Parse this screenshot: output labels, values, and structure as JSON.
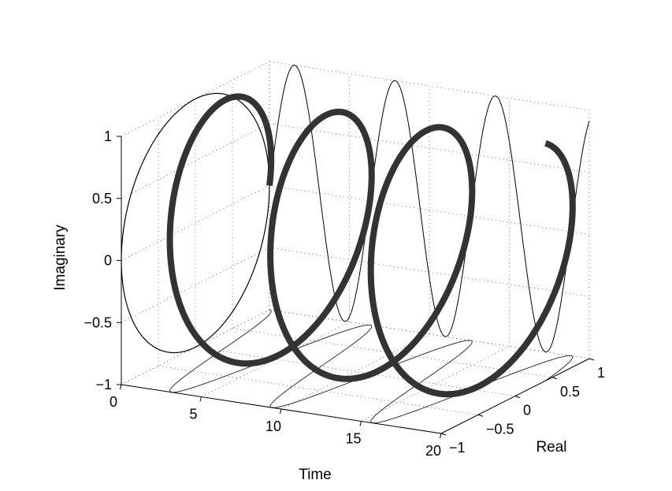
{
  "chart_data": {
    "type": "line",
    "view": "3d",
    "xlabel": "Time",
    "ylabel": "Real",
    "zlabel": "Imaginary",
    "xlim": [
      0,
      20
    ],
    "ylim": [
      -1,
      1
    ],
    "zlim": [
      -1,
      1
    ],
    "x_ticks": [
      "0",
      "5",
      "10",
      "15",
      "20"
    ],
    "y_ticks": [
      "−1",
      "−0.5",
      "0",
      "0.5",
      "1"
    ],
    "z_ticks": [
      "−1",
      "−0.5",
      "0",
      "0.5",
      "1"
    ],
    "grid": true,
    "legend": "none",
    "series": [
      {
        "function": "z(t) = exp(i*t)",
        "t_range": [
          0,
          20
        ],
        "real": "cos(t)",
        "imaginary": "sin(t)",
        "role": "helix",
        "style": "thick",
        "color": "#333333"
      },
      {
        "role": "projection onto Real-Imaginary plane at Time = 0",
        "x": 0,
        "real": "cos(t)",
        "imaginary": "sin(t)",
        "style": "thin",
        "color": "#000000"
      },
      {
        "role": "projection onto Time-Imaginary back wall (Real = 1)",
        "imaginary": "sin(t)",
        "style": "thin",
        "color": "#000000"
      },
      {
        "role": "projection onto Time-Real floor (Imaginary = -1)",
        "real": "cos(t)",
        "style": "thin",
        "color": "#000000"
      }
    ]
  }
}
